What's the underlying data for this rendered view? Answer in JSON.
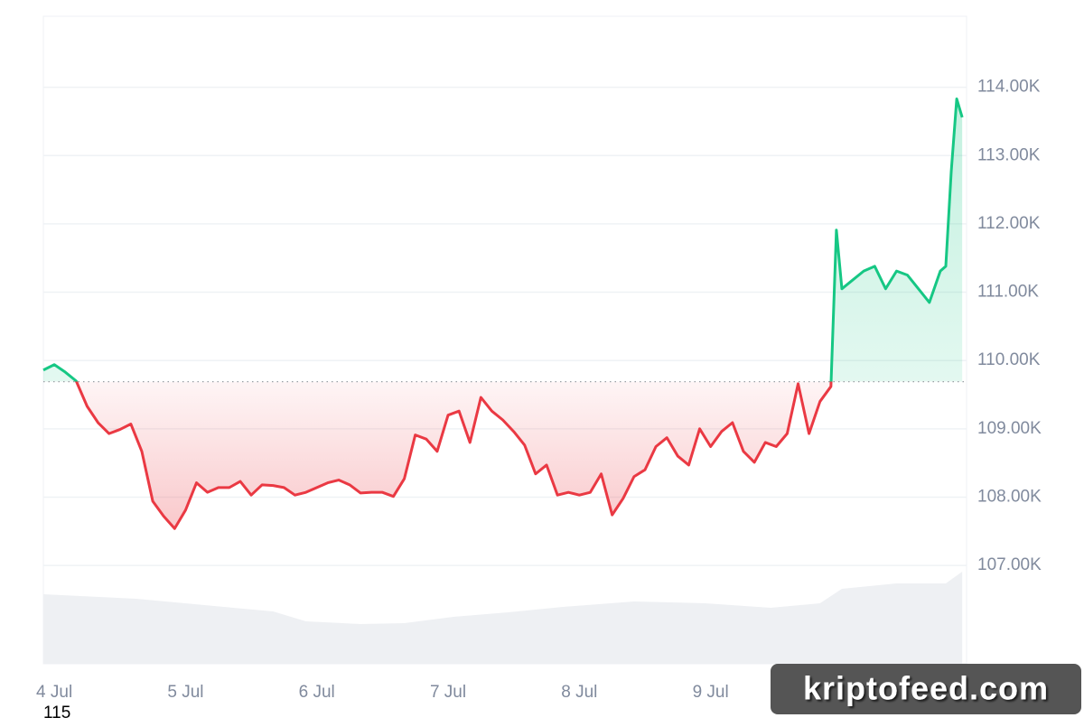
{
  "chart_data": {
    "type": "baseline-line",
    "x": [
      -2,
      0,
      2,
      4,
      6,
      8,
      10,
      12,
      14,
      16,
      18,
      20,
      22,
      24,
      26,
      28,
      30,
      32,
      34,
      36,
      38,
      40,
      42,
      44,
      46,
      48,
      50,
      52,
      54,
      56,
      58,
      60,
      62,
      64,
      66,
      68,
      70,
      72,
      74,
      76,
      78,
      80,
      82,
      84,
      86,
      88,
      90,
      92,
      94,
      96,
      98,
      100,
      102,
      104,
      106,
      108,
      110,
      112,
      114,
      116,
      118,
      120,
      122,
      124,
      126,
      128,
      130,
      132,
      134,
      136,
      138,
      140,
      142,
      143,
      144,
      146,
      148,
      150,
      152,
      154,
      156,
      158,
      160,
      162,
      163,
      164,
      165,
      166
    ],
    "values": [
      109.86,
      109.94,
      109.83,
      109.7,
      109.33,
      109.09,
      108.93,
      108.99,
      109.07,
      108.67,
      107.94,
      107.72,
      107.54,
      107.81,
      108.21,
      108.07,
      108.14,
      108.14,
      108.23,
      108.03,
      108.18,
      108.17,
      108.14,
      108.03,
      108.07,
      108.14,
      108.21,
      108.25,
      108.18,
      108.06,
      108.07,
      108.07,
      108.01,
      108.27,
      108.91,
      108.85,
      108.67,
      109.2,
      109.26,
      108.8,
      109.46,
      109.26,
      109.13,
      108.96,
      108.76,
      108.34,
      108.47,
      108.03,
      108.07,
      108.03,
      108.07,
      108.34,
      107.74,
      107.98,
      108.3,
      108.4,
      108.74,
      108.87,
      108.6,
      108.47,
      109.0,
      108.74,
      108.96,
      109.09,
      108.67,
      108.51,
      108.8,
      108.74,
      108.93,
      109.66,
      108.93,
      109.4,
      109.62,
      111.91,
      111.05,
      111.18,
      111.31,
      111.38,
      111.05,
      111.31,
      111.25,
      111.05,
      110.85,
      111.31,
      111.38,
      112.77,
      113.83,
      113.56
    ],
    "colors": {
      "above": "#16c784",
      "below": "#ea3943"
    },
    "reference_line": 109.69,
    "xlim": [
      -2,
      166.8
    ],
    "xticks": [
      {
        "value": 0,
        "label": "4 Jul"
      },
      {
        "value": 24,
        "label": "5 Jul"
      },
      {
        "value": 48,
        "label": "6 Jul"
      },
      {
        "value": 72,
        "label": "7 Jul"
      },
      {
        "value": 96,
        "label": "8 Jul"
      },
      {
        "value": 120,
        "label": "9 Jul"
      }
    ],
    "ylim": [
      105.56,
      115.04
    ],
    "yticks": [
      {
        "value": 107,
        "label": "107.00K"
      },
      {
        "value": 108,
        "label": "108.00K"
      },
      {
        "value": 109,
        "label": "109.00K"
      },
      {
        "value": 110,
        "label": "110.00K"
      },
      {
        "value": 111,
        "label": "111.00K"
      },
      {
        "value": 112,
        "label": "112.00K"
      },
      {
        "value": 113,
        "label": "113.00K"
      },
      {
        "value": 114,
        "label": "114.00K"
      }
    ],
    "grid": true,
    "volume": {
      "color": "#eef0f3",
      "x": [
        -2,
        15,
        31,
        40,
        46,
        56,
        64,
        73,
        83,
        93,
        106,
        119,
        131,
        140,
        144,
        154,
        163,
        166
      ],
      "values": [
        77,
        72,
        63,
        58,
        47,
        44,
        45,
        52,
        57,
        63,
        69,
        67,
        62,
        67,
        83,
        89,
        89,
        102
      ]
    },
    "y2lim": [
      0,
      717
    ],
    "footnote": "115",
    "watermark": "kriptofeed.com"
  }
}
